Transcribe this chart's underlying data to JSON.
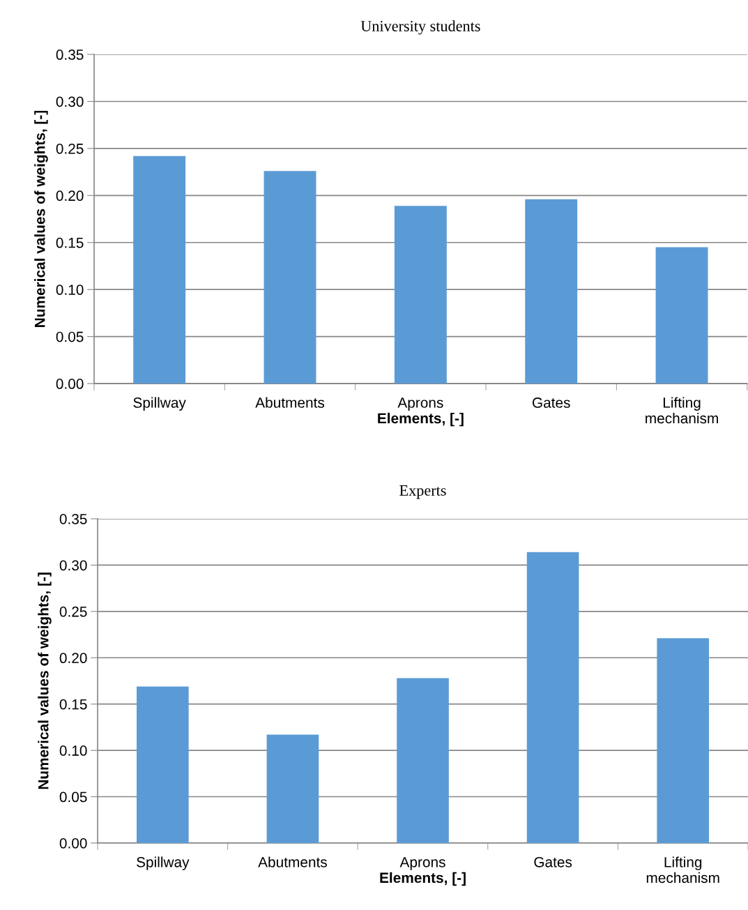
{
  "chart_data": [
    {
      "type": "bar",
      "title": "University students",
      "xlabel": "Elements, [-]",
      "ylabel": "Numerical values of weights, [-]",
      "categories": [
        "Spillway",
        "Abutments",
        "Aprons",
        "Gates",
        "Lifting\nmechanism"
      ],
      "values": [
        0.242,
        0.226,
        0.189,
        0.196,
        0.145
      ],
      "color": "#5b9bd5",
      "ylim": [
        0,
        0.35
      ],
      "yticks": [
        {
          "value": 0,
          "label": "0.00"
        },
        {
          "value": 0.05,
          "label": "0.05"
        },
        {
          "value": 0.1,
          "label": "0.10"
        },
        {
          "value": 0.15,
          "label": "0.15"
        },
        {
          "value": 0.2,
          "label": "0.20"
        },
        {
          "value": 0.25,
          "label": "0.25"
        },
        {
          "value": 0.3,
          "label": "0.30"
        },
        {
          "value": 0.35,
          "label": "0.35"
        }
      ],
      "grid": "y",
      "legend": false
    },
    {
      "type": "bar",
      "title": "Experts",
      "xlabel": "Elements, [-]",
      "ylabel": "Numerical values of weights, [-]",
      "categories": [
        "Spillway",
        "Abutments",
        "Aprons",
        "Gates",
        "Lifting\nmechanism"
      ],
      "values": [
        0.169,
        0.117,
        0.178,
        0.314,
        0.221
      ],
      "color": "#5b9bd5",
      "ylim": [
        0,
        0.35
      ],
      "yticks": [
        {
          "value": 0,
          "label": "0.00"
        },
        {
          "value": 0.05,
          "label": "0.05"
        },
        {
          "value": 0.1,
          "label": "0.10"
        },
        {
          "value": 0.15,
          "label": "0.15"
        },
        {
          "value": 0.2,
          "label": "0.20"
        },
        {
          "value": 0.25,
          "label": "0.25"
        },
        {
          "value": 0.3,
          "label": "0.30"
        },
        {
          "value": 0.35,
          "label": "0.35"
        }
      ],
      "grid": "y",
      "legend": false
    }
  ]
}
